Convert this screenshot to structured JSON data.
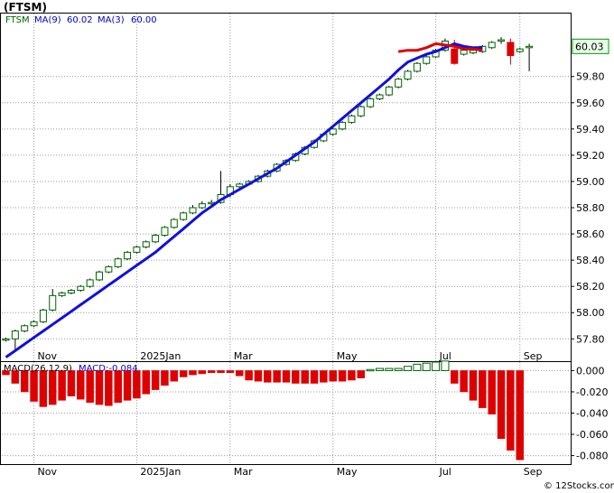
{
  "chart_data": {
    "type": "candlestick",
    "title": "(FTSM)",
    "watermark": "© 12Stocks.com",
    "price_panel": {
      "ylim": [
        57.63,
        60.28
      ],
      "yticks": [
        "57.80",
        "58.00",
        "58.20",
        "58.40",
        "58.60",
        "58.80",
        "59.00",
        "59.20",
        "59.40",
        "59.60",
        "59.80"
      ],
      "ytick_values": [
        57.8,
        58.0,
        58.2,
        58.4,
        58.6,
        58.8,
        59.0,
        59.2,
        59.4,
        59.6,
        59.8
      ],
      "last_price_label": "60.03",
      "last_price": 60.03,
      "legend": {
        "symbol": "FTSM",
        "ma_long_label": "MA(9)",
        "ma_long_value": "60.02",
        "ma_short_label": "MA(3)",
        "ma_short_value": "60.00"
      },
      "colors": {
        "up_candle_border": "#006400",
        "down_candle": "#dd0000",
        "ma_long": "#1010dd",
        "ma_short": "#dd0000",
        "legend_symbol": "#006400",
        "legend_ma": "#0000cc",
        "last_price_box_bg": "#eaffea",
        "last_price_box_border": "#009900"
      }
    },
    "macd_panel": {
      "legend_label": "MACD(26,12,9)",
      "legend_value": "MACD:-0.084",
      "ylim": [
        -0.088,
        0.008
      ],
      "yticks": [
        "0.000",
        "-0.020",
        "-0.040",
        "-0.060",
        "-0.080"
      ],
      "ytick_values": [
        0.0,
        -0.02,
        -0.04,
        -0.06,
        -0.08
      ],
      "colors": {
        "up_bar_border": "#006400",
        "down_bar": "#dd0000",
        "legend_value": "#0000cc"
      },
      "values": [
        -0.004,
        -0.012,
        -0.02,
        -0.029,
        -0.034,
        -0.032,
        -0.028,
        -0.024,
        -0.027,
        -0.03,
        -0.032,
        -0.033,
        -0.03,
        -0.028,
        -0.026,
        -0.022,
        -0.018,
        -0.014,
        -0.01,
        -0.006,
        -0.004,
        -0.003,
        -0.002,
        -0.002,
        -0.002,
        -0.005,
        -0.009,
        -0.01,
        -0.011,
        -0.011,
        -0.011,
        -0.012,
        -0.012,
        -0.012,
        -0.011,
        -0.01,
        -0.01,
        -0.009,
        -0.007,
        0.001,
        0.002,
        0.002,
        0.002,
        0.004,
        0.006,
        0.007,
        0.008,
        0.009,
        -0.012,
        -0.02,
        -0.028,
        -0.035,
        -0.041,
        -0.064,
        -0.075,
        -0.084
      ]
    },
    "x_labels": [
      "Nov",
      "2025Jan",
      "Mar",
      "May",
      "Jul",
      "Sep"
    ],
    "x_label_index": [
      3,
      14,
      24,
      35,
      46,
      55
    ],
    "grid": true,
    "candles": {
      "open": [
        57.79,
        57.8,
        57.86,
        57.9,
        57.93,
        58.02,
        58.13,
        58.15,
        58.17,
        58.2,
        58.25,
        58.31,
        58.35,
        58.41,
        58.46,
        58.5,
        58.54,
        58.59,
        58.65,
        58.71,
        58.76,
        58.8,
        58.83,
        58.84,
        58.9,
        58.96,
        58.98,
        59.0,
        59.04,
        59.08,
        59.13,
        59.16,
        59.21,
        59.26,
        59.31,
        59.36,
        59.4,
        59.45,
        59.5,
        59.57,
        59.63,
        59.66,
        59.72,
        59.78,
        59.84,
        59.9,
        59.95,
        60.0,
        60.01,
        59.97,
        59.98,
        59.99,
        60.02,
        60.07,
        60.06,
        59.99,
        60.02
      ],
      "close": [
        57.8,
        57.86,
        57.9,
        57.93,
        58.02,
        58.13,
        58.15,
        58.17,
        58.2,
        58.25,
        58.31,
        58.35,
        58.41,
        58.46,
        58.5,
        58.54,
        58.59,
        58.65,
        58.71,
        58.76,
        58.8,
        58.83,
        58.84,
        58.9,
        58.96,
        58.98,
        59.0,
        59.04,
        59.08,
        59.13,
        59.16,
        59.21,
        59.26,
        59.31,
        59.36,
        59.4,
        59.45,
        59.5,
        59.57,
        59.63,
        59.66,
        59.72,
        59.78,
        59.84,
        59.9,
        59.95,
        60.0,
        60.07,
        59.9,
        60.0,
        60.0,
        60.03,
        60.06,
        60.08,
        59.96,
        60.01,
        60.03
      ],
      "high": [
        57.81,
        57.87,
        57.91,
        57.94,
        58.03,
        58.18,
        58.16,
        58.18,
        58.21,
        58.26,
        58.32,
        58.36,
        58.42,
        58.47,
        58.51,
        58.55,
        58.6,
        58.66,
        58.72,
        58.77,
        58.82,
        58.85,
        58.86,
        59.08,
        58.98,
        58.99,
        59.01,
        59.05,
        59.09,
        59.14,
        59.17,
        59.22,
        59.27,
        59.32,
        59.37,
        59.41,
        59.46,
        59.51,
        59.58,
        59.64,
        59.67,
        59.73,
        59.79,
        59.85,
        59.91,
        59.96,
        60.01,
        60.09,
        60.08,
        60.02,
        60.01,
        60.04,
        60.07,
        60.1,
        60.09,
        60.02,
        60.05
      ],
      "low": [
        57.78,
        57.7,
        57.85,
        57.89,
        57.92,
        58.01,
        58.12,
        58.14,
        58.16,
        58.19,
        58.24,
        58.3,
        58.34,
        58.4,
        58.45,
        58.49,
        58.53,
        58.58,
        58.64,
        58.7,
        58.75,
        58.79,
        58.82,
        58.83,
        58.88,
        58.95,
        58.97,
        58.99,
        59.03,
        59.07,
        59.12,
        59.15,
        59.2,
        59.25,
        59.3,
        59.35,
        59.39,
        59.44,
        59.49,
        59.56,
        59.62,
        59.65,
        59.71,
        59.77,
        59.83,
        59.89,
        59.94,
        59.99,
        59.89,
        59.96,
        59.97,
        59.98,
        60.01,
        60.05,
        59.89,
        59.98,
        59.84
      ]
    },
    "ma_long": [
      57.66,
      57.71,
      57.76,
      57.81,
      57.86,
      57.91,
      57.96,
      58.01,
      58.06,
      58.11,
      58.16,
      58.21,
      58.26,
      58.31,
      58.36,
      58.41,
      58.46,
      58.52,
      58.58,
      58.64,
      58.7,
      58.76,
      58.81,
      58.86,
      58.9,
      58.94,
      58.98,
      59.02,
      59.06,
      59.1,
      59.15,
      59.2,
      59.25,
      59.3,
      59.36,
      59.42,
      59.48,
      59.54,
      59.6,
      59.66,
      59.72,
      59.78,
      59.85,
      59.91,
      59.94,
      59.97,
      59.99,
      60.02,
      60.05,
      60.03,
      60.02,
      60.02
    ],
    "ma_short": [
      59.99,
      60.0,
      60.0,
      60.02,
      60.05,
      60.04,
      60.03,
      60.01,
      60.01,
      60.0
    ]
  }
}
